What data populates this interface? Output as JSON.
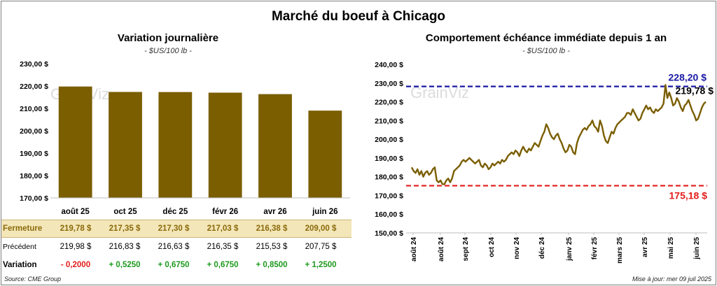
{
  "page_title": "Marché du boeuf à Chicago",
  "left_chart": {
    "title": "Variation  journalière",
    "subtitle": "- $US/100 lb -"
  },
  "right_chart": {
    "title": "Comportement  échéance immédiate depuis 1 an",
    "subtitle": "- $US/100 lb -"
  },
  "watermark": "GrainViz",
  "table": {
    "rows": [
      {
        "label": "Fermeture",
        "cells": [
          "219,78  $",
          "217,35  $",
          "217,30  $",
          "217,03  $",
          "216,38  $",
          "209,00  $"
        ]
      },
      {
        "label": "Précédent",
        "cells": [
          "219,98  $",
          "216,83  $",
          "216,63  $",
          "216,35  $",
          "215,53  $",
          "207,75  $"
        ]
      },
      {
        "label": "Variation",
        "cells": [
          "- 0,2000",
          "+ 0,5250",
          "+ 0,6750",
          "+ 0,6750",
          "+ 0,8500",
          "+ 1,2500"
        ]
      }
    ]
  },
  "footer": {
    "source": "Source: CME Group",
    "updated": "Mise à jour: mer 09 juil 2025"
  },
  "colors": {
    "bar": "#7a5e00",
    "line": "#7a5e00",
    "high": "#1a1aa6",
    "low": "#e41b1b",
    "ferm_bg": "#f3e6b8"
  },
  "chart_data": [
    {
      "type": "bar",
      "categories": [
        "août 25",
        "oct 25",
        "déc 25",
        "févr 26",
        "avr 26",
        "juin 26"
      ],
      "values": [
        219.78,
        217.35,
        217.3,
        217.03,
        216.38,
        209.0
      ],
      "ylim": [
        170,
        230
      ],
      "yticks": [
        "170,00 $",
        "180,00 $",
        "190,00 $",
        "200,00 $",
        "210,00 $",
        "220,00 $",
        "230,00 $"
      ],
      "grid": false
    },
    {
      "type": "line",
      "xticks": [
        "août 24",
        "août 24",
        "sept 24",
        "oct 24",
        "nov 24",
        "déc 24",
        "janv 25",
        "févr 25",
        "mars 25",
        "avr 25",
        "mai 25",
        "juin 25"
      ],
      "ylim": [
        150,
        240
      ],
      "yticks": [
        "150,00 $",
        "160,00 $",
        "170,00 $",
        "180,00 $",
        "190,00 $",
        "200,00 $",
        "210,00 $",
        "220,00 $",
        "230,00 $",
        "240,00 $"
      ],
      "high": {
        "value": 228.2,
        "label": "228,20 $"
      },
      "low": {
        "value": 175.18,
        "label": "175,18 $"
      },
      "last": {
        "value": 219.78,
        "label": "219,78 $"
      },
      "values": [
        185,
        183,
        182,
        184,
        181,
        183,
        180,
        182,
        183,
        181,
        182,
        184,
        185,
        178,
        177,
        178,
        176,
        176,
        178,
        179,
        177,
        179,
        183,
        184,
        185,
        186,
        188,
        189,
        188,
        189,
        190,
        189,
        188,
        187,
        188,
        189,
        186,
        185,
        187,
        186,
        184,
        185,
        187,
        186,
        187,
        188,
        187,
        189,
        188,
        189,
        191,
        192,
        193,
        192,
        194,
        193,
        191,
        194,
        196,
        194,
        193,
        195,
        194,
        196,
        198,
        197,
        196,
        199,
        202,
        204,
        208,
        206,
        203,
        201,
        200,
        202,
        203,
        200,
        198,
        195,
        193,
        194,
        197,
        196,
        193,
        192,
        198,
        201,
        203,
        205,
        206,
        205,
        207,
        208,
        210,
        207,
        206,
        204,
        210,
        207,
        202,
        199,
        198,
        201,
        204,
        203,
        206,
        208,
        209,
        210,
        211,
        212,
        214,
        214,
        213,
        216,
        214,
        212,
        210,
        211,
        214,
        216,
        218,
        216,
        217,
        215,
        214,
        216,
        215,
        216,
        217,
        219,
        229,
        222,
        225,
        222,
        218,
        219,
        222,
        220,
        217,
        215,
        218,
        219,
        221,
        218,
        215,
        213,
        210,
        211,
        214,
        217,
        219,
        220
      ]
    }
  ]
}
